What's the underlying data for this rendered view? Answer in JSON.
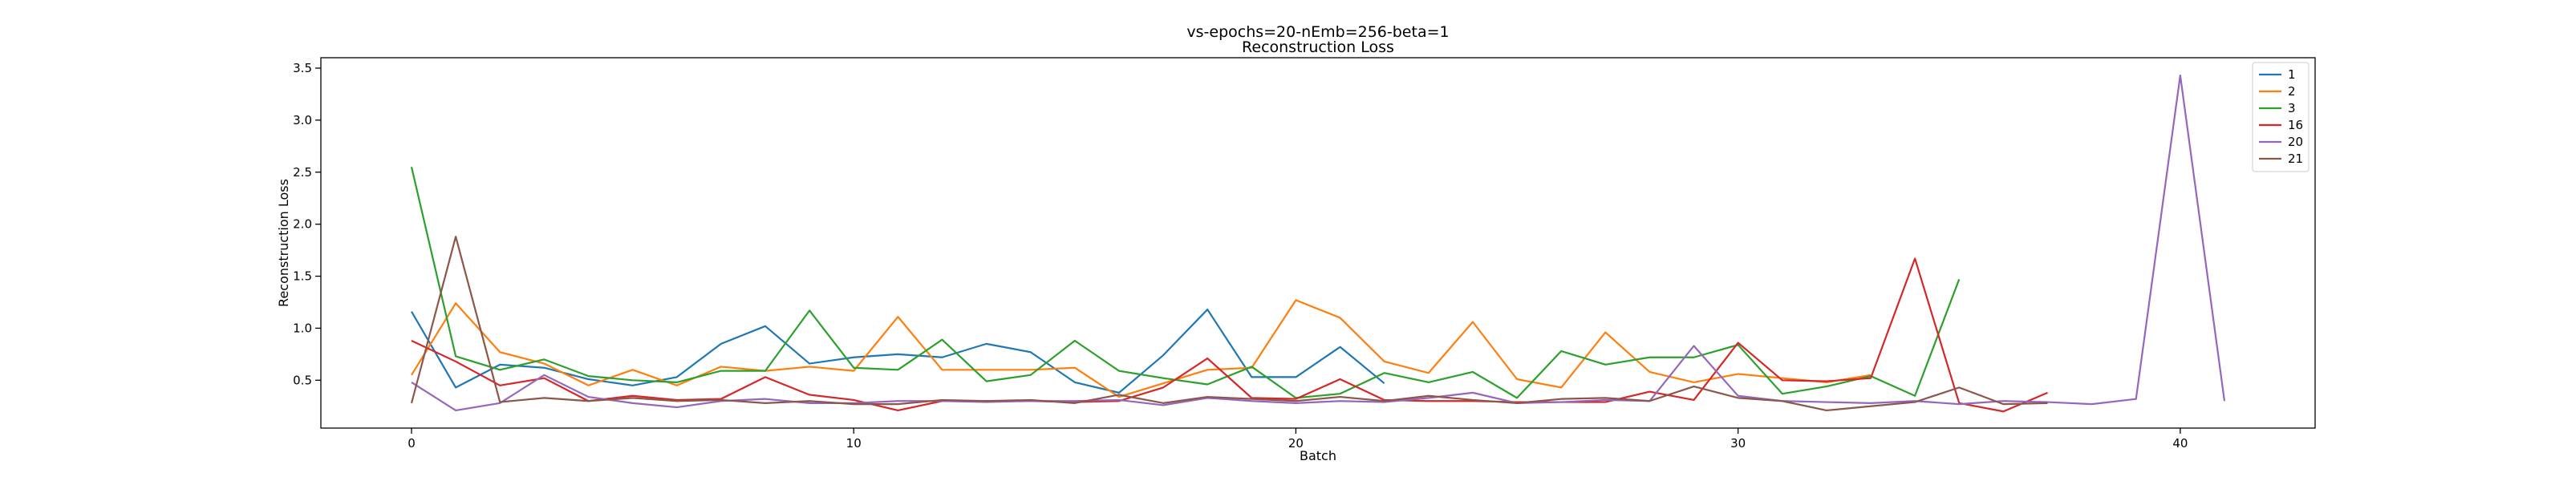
{
  "chart_data": {
    "type": "line",
    "title": "vs-epochs=20-nEmb=256-beta=1",
    "subtitle": "Reconstruction Loss",
    "xlabel": "Batch",
    "ylabel": "Reconstruction Loss",
    "xlim": [
      -2.05,
      43.05
    ],
    "ylim": [
      0.04,
      3.6
    ],
    "xticks": [
      "0",
      "10",
      "20",
      "30",
      "40"
    ],
    "yticks": [
      "0.5",
      "1.0",
      "1.5",
      "2.0",
      "2.5",
      "3.0",
      "3.5"
    ],
    "grid": false,
    "legend_position": "top-right",
    "series": [
      {
        "name": "1",
        "color": "#1f77b4",
        "values": [
          1.16,
          0.43,
          0.65,
          0.62,
          0.51,
          0.45,
          0.53,
          0.85,
          1.02,
          0.66,
          0.72,
          0.75,
          0.72,
          0.85,
          0.77,
          0.48,
          0.38,
          0.74,
          1.18,
          0.53,
          0.53,
          0.82,
          0.47
        ]
      },
      {
        "name": "2",
        "color": "#ff7f0e",
        "values": [
          0.55,
          1.24,
          0.77,
          0.66,
          0.45,
          0.6,
          0.45,
          0.63,
          0.59,
          0.63,
          0.59,
          1.11,
          0.6,
          0.6,
          0.6,
          0.62,
          0.34,
          0.47,
          0.6,
          0.62,
          1.27,
          1.1,
          0.68,
          0.57,
          1.06,
          0.51,
          0.43,
          0.96,
          0.58,
          0.48,
          0.56,
          0.52,
          0.48,
          0.55
        ]
      },
      {
        "name": "3",
        "color": "#2ca02c",
        "values": [
          2.55,
          0.73,
          0.6,
          0.7,
          0.54,
          0.5,
          0.48,
          0.59,
          0.59,
          1.17,
          0.62,
          0.6,
          0.89,
          0.49,
          0.55,
          0.88,
          0.59,
          0.52,
          0.46,
          0.63,
          0.33,
          0.37,
          0.57,
          0.48,
          0.58,
          0.33,
          0.78,
          0.65,
          0.72,
          0.72,
          0.84,
          0.37,
          0.44,
          0.54,
          0.35,
          1.47
        ]
      },
      {
        "name": "16",
        "color": "#d62728",
        "values": [
          0.88,
          0.68,
          0.45,
          0.52,
          0.3,
          0.35,
          0.31,
          0.32,
          0.53,
          0.36,
          0.31,
          0.21,
          0.3,
          0.3,
          0.3,
          0.29,
          0.3,
          0.43,
          0.71,
          0.33,
          0.32,
          0.51,
          0.31,
          0.3,
          0.3,
          0.29,
          0.29,
          0.29,
          0.39,
          0.31,
          0.86,
          0.5,
          0.49,
          0.52,
          1.67,
          0.28,
          0.2,
          0.38
        ]
      },
      {
        "name": "20",
        "color": "#9467bd",
        "values": [
          0.48,
          0.21,
          0.28,
          0.55,
          0.34,
          0.28,
          0.24,
          0.3,
          0.32,
          0.28,
          0.28,
          0.3,
          0.3,
          0.29,
          0.3,
          0.3,
          0.31,
          0.26,
          0.33,
          0.3,
          0.28,
          0.3,
          0.29,
          0.33,
          0.38,
          0.28,
          0.29,
          0.31,
          0.3,
          0.83,
          0.35,
          0.3,
          0.29,
          0.28,
          0.3,
          0.27,
          0.3,
          0.29,
          0.27,
          0.32,
          3.43,
          0.3
        ]
      },
      {
        "name": "21",
        "color": "#8c564b",
        "values": [
          0.28,
          1.88,
          0.29,
          0.33,
          0.3,
          0.33,
          0.3,
          0.31,
          0.28,
          0.3,
          0.27,
          0.27,
          0.31,
          0.3,
          0.31,
          0.28,
          0.36,
          0.28,
          0.34,
          0.32,
          0.3,
          0.34,
          0.3,
          0.35,
          0.31,
          0.28,
          0.32,
          0.33,
          0.3,
          0.44,
          0.33,
          0.3,
          0.21,
          0.25,
          0.29,
          0.43,
          0.27,
          0.28
        ]
      }
    ]
  }
}
